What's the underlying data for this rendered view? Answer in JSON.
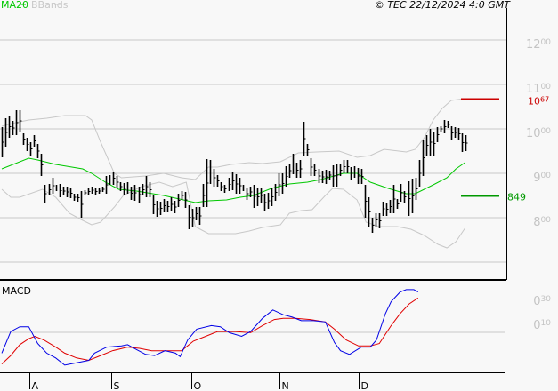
{
  "header": {
    "legend_ma": "MA20",
    "legend_bb": "BBands",
    "copyright": "© TEC 22/12/2024 4:0 GMT"
  },
  "colors": {
    "ma": "#00c800",
    "bands": "#c8c8c8",
    "bars": "#000000",
    "macd": "#0000e6",
    "signal": "#e00000",
    "resistance": "#cc0000",
    "support": "#009900"
  },
  "chart_data": {
    "type": "bar",
    "title": "",
    "ylim": [
      660,
      1290
    ],
    "y_ticks": [
      {
        "v": 1200,
        "a": "12",
        "b": "00"
      },
      {
        "v": 1100,
        "a": "11",
        "b": "00"
      },
      {
        "v": 1000,
        "a": "10",
        "b": "00"
      },
      {
        "v": 900,
        "a": "9",
        "b": "00"
      },
      {
        "v": 800,
        "a": "8",
        "b": "00"
      },
      {
        "v": 700,
        "a": "",
        "b": ""
      }
    ],
    "months": [
      {
        "i": 7.6,
        "label": "A"
      },
      {
        "i": 30.5,
        "label": "S"
      },
      {
        "i": 52.8,
        "label": "O"
      },
      {
        "i": 77.3,
        "label": "N"
      },
      {
        "i": 99.3,
        "label": "D"
      }
    ],
    "resistance": {
      "value": 1067,
      "a": "10",
      "b": "67"
    },
    "support": {
      "value": 849,
      "label": "849"
    },
    "bars_hl": [
      [
        1004,
        936
      ],
      [
        1024,
        960
      ],
      [
        1030,
        980
      ],
      [
        1018,
        986
      ],
      [
        1042,
        986
      ],
      [
        1042,
        994
      ],
      [
        990,
        964
      ],
      [
        980,
        950
      ],
      [
        970,
        940
      ],
      [
        986,
        960
      ],
      [
        966,
        934
      ],
      [
        944,
        894
      ],
      [
        874,
        834
      ],
      [
        876,
        850
      ],
      [
        890,
        854
      ],
      [
        874,
        860
      ],
      [
        876,
        846
      ],
      [
        870,
        850
      ],
      [
        870,
        846
      ],
      [
        866,
        844
      ],
      [
        854,
        838
      ],
      [
        854,
        836
      ],
      [
        860,
        800
      ],
      [
        862,
        850
      ],
      [
        868,
        850
      ],
      [
        870,
        854
      ],
      [
        866,
        852
      ],
      [
        866,
        854
      ],
      [
        870,
        858
      ],
      [
        894,
        854
      ],
      [
        896,
        874
      ],
      [
        904,
        874
      ],
      [
        894,
        866
      ],
      [
        880,
        860
      ],
      [
        878,
        850
      ],
      [
        880,
        854
      ],
      [
        870,
        840
      ],
      [
        874,
        838
      ],
      [
        870,
        834
      ],
      [
        876,
        850
      ],
      [
        894,
        846
      ],
      [
        880,
        846
      ],
      [
        850,
        808
      ],
      [
        838,
        802
      ],
      [
        836,
        806
      ],
      [
        842,
        812
      ],
      [
        838,
        812
      ],
      [
        846,
        814
      ],
      [
        838,
        810
      ],
      [
        854,
        824
      ],
      [
        860,
        840
      ],
      [
        858,
        822
      ],
      [
        828,
        774
      ],
      [
        820,
        780
      ],
      [
        824,
        794
      ],
      [
        824,
        784
      ],
      [
        876,
        824
      ],
      [
        932,
        824
      ],
      [
        930,
        876
      ],
      [
        910,
        870
      ],
      [
        896,
        870
      ],
      [
        880,
        860
      ],
      [
        874,
        856
      ],
      [
        890,
        860
      ],
      [
        904,
        862
      ],
      [
        898,
        854
      ],
      [
        890,
        854
      ],
      [
        874,
        860
      ],
      [
        868,
        840
      ],
      [
        870,
        846
      ],
      [
        874,
        822
      ],
      [
        868,
        826
      ],
      [
        866,
        834
      ],
      [
        854,
        814
      ],
      [
        856,
        820
      ],
      [
        868,
        826
      ],
      [
        876,
        838
      ],
      [
        900,
        848
      ],
      [
        900,
        854
      ],
      [
        916,
        870
      ],
      [
        922,
        890
      ],
      [
        944,
        898
      ],
      [
        924,
        890
      ],
      [
        930,
        890
      ],
      [
        1016,
        940
      ],
      [
        966,
        940
      ],
      [
        934,
        894
      ],
      [
        920,
        894
      ],
      [
        910,
        878
      ],
      [
        906,
        878
      ],
      [
        908,
        876
      ],
      [
        906,
        886
      ],
      [
        918,
        870
      ],
      [
        922,
        870
      ],
      [
        920,
        894
      ],
      [
        930,
        900
      ],
      [
        930,
        900
      ],
      [
        914,
        886
      ],
      [
        916,
        890
      ],
      [
        912,
        876
      ],
      [
        910,
        876
      ],
      [
        874,
        800
      ],
      [
        846,
        780
      ],
      [
        800,
        766
      ],
      [
        810,
        780
      ],
      [
        810,
        776
      ],
      [
        836,
        804
      ],
      [
        834,
        804
      ],
      [
        840,
        810
      ],
      [
        874,
        810
      ],
      [
        842,
        820
      ],
      [
        876,
        836
      ],
      [
        860,
        834
      ],
      [
        882,
        804
      ],
      [
        888,
        810
      ],
      [
        890,
        840
      ],
      [
        930,
        870
      ],
      [
        976,
        894
      ],
      [
        986,
        940
      ],
      [
        1000,
        940
      ],
      [
        994,
        940
      ],
      [
        1004,
        970
      ],
      [
        1006,
        994
      ],
      [
        1020,
        990
      ],
      [
        1018,
        1002
      ],
      [
        1006,
        976
      ],
      [
        1004,
        980
      ],
      [
        1002,
        976
      ],
      [
        990,
        948
      ],
      [
        986,
        950
      ]
    ],
    "ma20": [
      [
        0,
        910
      ],
      [
        7.5,
        934
      ],
      [
        10,
        930
      ],
      [
        15,
        920
      ],
      [
        22.5,
        910
      ],
      [
        25,
        900
      ],
      [
        28.8,
        880
      ],
      [
        32.5,
        864
      ],
      [
        37.5,
        860
      ],
      [
        45,
        850
      ],
      [
        53.8,
        834
      ],
      [
        57.5,
        838
      ],
      [
        62.5,
        840
      ],
      [
        66.3,
        846
      ],
      [
        70,
        850
      ],
      [
        75,
        866
      ],
      [
        80,
        876
      ],
      [
        85,
        880
      ],
      [
        88.8,
        886
      ],
      [
        95,
        900
      ],
      [
        98.8,
        900
      ],
      [
        102.5,
        880
      ],
      [
        107.5,
        866
      ],
      [
        112.5,
        854
      ],
      [
        115,
        854
      ],
      [
        120,
        874
      ],
      [
        123.8,
        890
      ],
      [
        126.3,
        910
      ],
      [
        128.8,
        924
      ]
    ],
    "bb_upper": [
      [
        0,
        1006
      ],
      [
        3.8,
        1014
      ],
      [
        7.5,
        1020
      ],
      [
        12.5,
        1024
      ],
      [
        17.5,
        1030
      ],
      [
        23.3,
        1030
      ],
      [
        25,
        1020
      ],
      [
        27.5,
        970
      ],
      [
        31.3,
        900
      ],
      [
        33.3,
        890
      ],
      [
        40,
        894
      ],
      [
        45,
        900
      ],
      [
        50,
        890
      ],
      [
        53.8,
        886
      ],
      [
        57.5,
        914
      ],
      [
        60,
        914
      ],
      [
        63.8,
        920
      ],
      [
        68.8,
        924
      ],
      [
        72.5,
        922
      ],
      [
        77.5,
        926
      ],
      [
        82.5,
        946
      ],
      [
        87.5,
        948
      ],
      [
        93.8,
        950
      ],
      [
        98.8,
        936
      ],
      [
        102.5,
        940
      ],
      [
        106.3,
        954
      ],
      [
        112.5,
        948
      ],
      [
        115,
        954
      ],
      [
        117.5,
        980
      ],
      [
        120,
        1020
      ],
      [
        122.5,
        1046
      ],
      [
        125,
        1064
      ],
      [
        128.8,
        1068
      ]
    ],
    "bb_lower": [
      [
        0,
        864
      ],
      [
        2.5,
        846
      ],
      [
        5,
        846
      ],
      [
        11.3,
        864
      ],
      [
        15,
        846
      ],
      [
        18.8,
        810
      ],
      [
        22.5,
        794
      ],
      [
        25,
        784
      ],
      [
        27.5,
        790
      ],
      [
        31.3,
        824
      ],
      [
        33.8,
        850
      ],
      [
        38.8,
        870
      ],
      [
        43.8,
        880
      ],
      [
        47.5,
        870
      ],
      [
        51.3,
        880
      ],
      [
        53.8,
        780
      ],
      [
        57.5,
        764
      ],
      [
        65,
        764
      ],
      [
        68.8,
        770
      ],
      [
        72.5,
        778
      ],
      [
        77.5,
        784
      ],
      [
        80,
        810
      ],
      [
        83.3,
        816
      ],
      [
        86.3,
        818
      ],
      [
        90,
        850
      ],
      [
        92,
        866
      ],
      [
        95,
        864
      ],
      [
        98.8,
        840
      ],
      [
        101.3,
        790
      ],
      [
        105,
        780
      ],
      [
        110,
        780
      ],
      [
        113.8,
        774
      ],
      [
        117.5,
        760
      ],
      [
        121.3,
        740
      ],
      [
        123.8,
        732
      ],
      [
        126.3,
        746
      ],
      [
        128.8,
        776
      ]
    ],
    "macd_label": "MACD",
    "macd_ticks": [
      {
        "v": 0.3,
        "a": "0",
        "b": "30"
      },
      {
        "v": 0.1,
        "a": "0",
        "b": "10"
      }
    ],
    "macd_line": [
      [
        0,
        -0.14
      ],
      [
        2.5,
        0.04
      ],
      [
        5,
        0.08
      ],
      [
        7.5,
        0.08
      ],
      [
        10,
        -0.06
      ],
      [
        12.5,
        -0.14
      ],
      [
        15,
        -0.18
      ],
      [
        17.5,
        -0.24
      ],
      [
        20.8,
        -0.22
      ],
      [
        24.2,
        -0.2
      ],
      [
        25.8,
        -0.14
      ],
      [
        29.2,
        -0.09
      ],
      [
        33.3,
        -0.08
      ],
      [
        35,
        -0.07
      ],
      [
        37.5,
        -0.11
      ],
      [
        40,
        -0.15
      ],
      [
        42.5,
        -0.16
      ],
      [
        45.4,
        -0.12
      ],
      [
        48.3,
        -0.14
      ],
      [
        49.6,
        -0.17
      ],
      [
        51.7,
        -0.03
      ],
      [
        54.2,
        0.06
      ],
      [
        58.3,
        0.09
      ],
      [
        60.8,
        0.08
      ],
      [
        63.3,
        0.03
      ],
      [
        66.7,
        0.0
      ],
      [
        69.2,
        0.04
      ],
      [
        72.5,
        0.15
      ],
      [
        75.4,
        0.22
      ],
      [
        78.3,
        0.18
      ],
      [
        80.8,
        0.16
      ],
      [
        83.3,
        0.13
      ],
      [
        86.7,
        0.13
      ],
      [
        90,
        0.12
      ],
      [
        92.5,
        -0.05
      ],
      [
        94.2,
        -0.12
      ],
      [
        96.7,
        -0.15
      ],
      [
        100,
        -0.09
      ],
      [
        102.5,
        -0.09
      ],
      [
        104.2,
        -0.03
      ],
      [
        106.7,
        0.19
      ],
      [
        108.3,
        0.29
      ],
      [
        110.8,
        0.37
      ],
      [
        112.5,
        0.39
      ],
      [
        114.6,
        0.39
      ],
      [
        115.8,
        0.37
      ]
    ],
    "signal_line": [
      [
        0,
        -0.23
      ],
      [
        2.5,
        -0.16
      ],
      [
        5,
        -0.07
      ],
      [
        7.5,
        -0.02
      ],
      [
        9.2,
        0.0
      ],
      [
        11.7,
        -0.03
      ],
      [
        15,
        -0.09
      ],
      [
        17.5,
        -0.14
      ],
      [
        20.8,
        -0.18
      ],
      [
        24.2,
        -0.2
      ],
      [
        27.5,
        -0.16
      ],
      [
        30.8,
        -0.12
      ],
      [
        35,
        -0.09
      ],
      [
        38.3,
        -0.1
      ],
      [
        41.7,
        -0.12
      ],
      [
        46.7,
        -0.12
      ],
      [
        50,
        -0.12
      ],
      [
        53.3,
        -0.04
      ],
      [
        56.7,
        0.0
      ],
      [
        60,
        0.04
      ],
      [
        65,
        0.04
      ],
      [
        69.2,
        0.03
      ],
      [
        72.5,
        0.09
      ],
      [
        75.8,
        0.14
      ],
      [
        78.3,
        0.15
      ],
      [
        81.7,
        0.15
      ],
      [
        85.8,
        0.14
      ],
      [
        90,
        0.12
      ],
      [
        92.5,
        0.06
      ],
      [
        95.8,
        -0.03
      ],
      [
        99.2,
        -0.08
      ],
      [
        102.5,
        -0.08
      ],
      [
        105,
        -0.06
      ],
      [
        108.3,
        0.09
      ],
      [
        110.8,
        0.19
      ],
      [
        113.3,
        0.27
      ],
      [
        115.8,
        0.32
      ]
    ]
  }
}
